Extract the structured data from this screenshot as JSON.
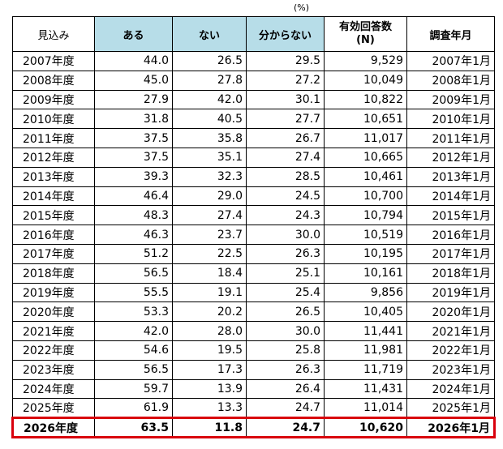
{
  "chart_data": {
    "type": "table",
    "unit_label": "(%)",
    "columns": [
      "見込み",
      "ある",
      "ない",
      "分からない",
      "有効回答数",
      "(N)",
      "調査年月"
    ],
    "rows": [
      {
        "year": "2007年度",
        "aru": "44.0",
        "nai": "26.5",
        "wakaranai": "29.5",
        "n": "9,529",
        "date": "2007年1月"
      },
      {
        "year": "2008年度",
        "aru": "45.0",
        "nai": "27.8",
        "wakaranai": "27.2",
        "n": "10,049",
        "date": "2008年1月"
      },
      {
        "year": "2009年度",
        "aru": "27.9",
        "nai": "42.0",
        "wakaranai": "30.1",
        "n": "10,822",
        "date": "2009年1月"
      },
      {
        "year": "2010年度",
        "aru": "31.8",
        "nai": "40.5",
        "wakaranai": "27.7",
        "n": "10,651",
        "date": "2010年1月"
      },
      {
        "year": "2011年度",
        "aru": "37.5",
        "nai": "35.8",
        "wakaranai": "26.7",
        "n": "11,017",
        "date": "2011年1月"
      },
      {
        "year": "2012年度",
        "aru": "37.5",
        "nai": "35.1",
        "wakaranai": "27.4",
        "n": "10,665",
        "date": "2012年1月"
      },
      {
        "year": "2013年度",
        "aru": "39.3",
        "nai": "32.3",
        "wakaranai": "28.5",
        "n": "10,461",
        "date": "2013年1月"
      },
      {
        "year": "2014年度",
        "aru": "46.4",
        "nai": "29.0",
        "wakaranai": "24.5",
        "n": "10,700",
        "date": "2014年1月"
      },
      {
        "year": "2015年度",
        "aru": "48.3",
        "nai": "27.4",
        "wakaranai": "24.3",
        "n": "10,794",
        "date": "2015年1月"
      },
      {
        "year": "2016年度",
        "aru": "46.3",
        "nai": "23.7",
        "wakaranai": "30.0",
        "n": "10,519",
        "date": "2016年1月"
      },
      {
        "year": "2017年度",
        "aru": "51.2",
        "nai": "22.5",
        "wakaranai": "26.3",
        "n": "10,195",
        "date": "2017年1月"
      },
      {
        "year": "2018年度",
        "aru": "56.5",
        "nai": "18.4",
        "wakaranai": "25.1",
        "n": "10,161",
        "date": "2018年1月"
      },
      {
        "year": "2019年度",
        "aru": "55.5",
        "nai": "19.1",
        "wakaranai": "25.4",
        "n": "9,856",
        "date": "2019年1月"
      },
      {
        "year": "2020年度",
        "aru": "53.3",
        "nai": "20.2",
        "wakaranai": "26.5",
        "n": "10,405",
        "date": "2020年1月"
      },
      {
        "year": "2021年度",
        "aru": "42.0",
        "nai": "28.0",
        "wakaranai": "30.0",
        "n": "11,441",
        "date": "2021年1月"
      },
      {
        "year": "2022年度",
        "aru": "54.6",
        "nai": "19.5",
        "wakaranai": "25.8",
        "n": "11,981",
        "date": "2022年1月"
      },
      {
        "year": "2023年度",
        "aru": "56.5",
        "nai": "17.3",
        "wakaranai": "26.3",
        "n": "11,719",
        "date": "2023年1月"
      },
      {
        "year": "2024年度",
        "aru": "59.7",
        "nai": "13.9",
        "wakaranai": "26.4",
        "n": "11,431",
        "date": "2024年1月"
      },
      {
        "year": "2025年度",
        "aru": "61.9",
        "nai": "13.3",
        "wakaranai": "24.7",
        "n": "11,014",
        "date": "2025年1月"
      },
      {
        "year": "2026年度",
        "aru": "63.5",
        "nai": "11.8",
        "wakaranai": "24.7",
        "n": "10,620",
        "date": "2026年1月",
        "highlight": true
      }
    ],
    "header_color": "#b7dde8",
    "highlight_color": "#d9000d"
  }
}
